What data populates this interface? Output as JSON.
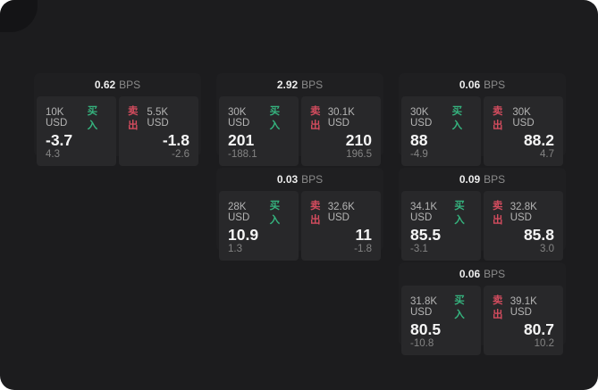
{
  "page": {
    "background": "#1c1c1e",
    "unit_label": "BPS"
  },
  "labels": {
    "buy": "买入",
    "sell": "卖出",
    "bps": "BPS"
  },
  "colors": {
    "buy_green": "#35b37e",
    "sell_red": "#d34c5e",
    "card_bg": "#1f1f21",
    "panel_bg": "#28282a"
  },
  "cards": [
    {
      "spread": "0.62",
      "buy": {
        "size": "10K USD",
        "price": "-3.7",
        "change": "4.3"
      },
      "sell": {
        "size": "5.5K USD",
        "price": "-1.8",
        "change": "-2.6"
      }
    },
    {
      "spread": "2.92",
      "buy": {
        "size": "30K USD",
        "price": "201",
        "change": "-188.1"
      },
      "sell": {
        "size": "30.1K USD",
        "price": "210",
        "change": "196.5"
      }
    },
    {
      "spread": "0.06",
      "buy": {
        "size": "30K USD",
        "price": "88",
        "change": "-4.9"
      },
      "sell": {
        "size": "30K USD",
        "price": "88.2",
        "change": "4.7"
      }
    },
    {
      "spread": "0.03",
      "buy": {
        "size": "28K USD",
        "price": "10.9",
        "change": "1.3"
      },
      "sell": {
        "size": "32.6K USD",
        "price": "11",
        "change": "-1.8"
      }
    },
    {
      "spread": "0.09",
      "buy": {
        "size": "34.1K USD",
        "price": "85.5",
        "change": "-3.1"
      },
      "sell": {
        "size": "32.8K USD",
        "price": "85.8",
        "change": "3.0"
      }
    },
    {
      "spread": "0.06",
      "buy": {
        "size": "31.8K USD",
        "price": "80.5",
        "change": "-10.8"
      },
      "sell": {
        "size": "39.1K USD",
        "price": "80.7",
        "change": "10.2"
      }
    }
  ]
}
